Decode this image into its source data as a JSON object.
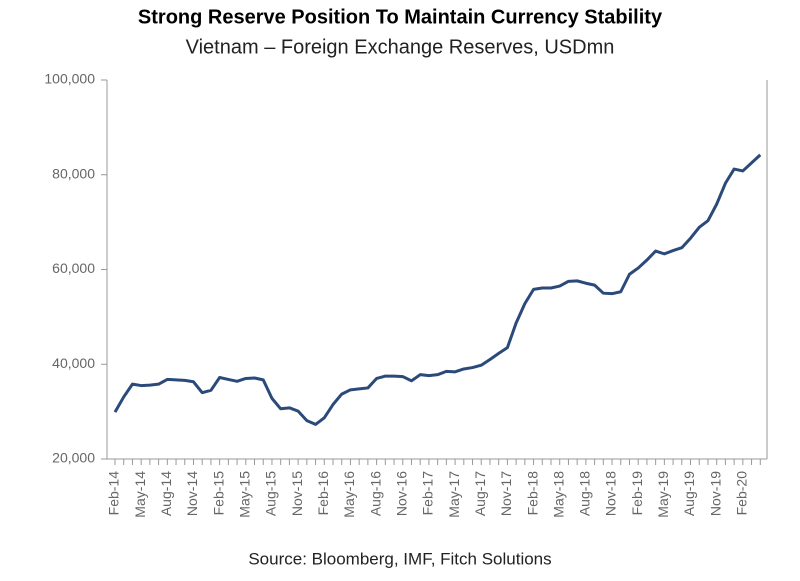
{
  "chart_data": {
    "type": "line",
    "title": "Strong Reserve Position To Maintain Currency Stability",
    "subtitle": "Vietnam – Foreign Exchange Reserves, USDmn",
    "source": "Source: Bloomberg, IMF, Fitch Solutions",
    "x": [
      "Feb-14",
      null,
      null,
      "May-14",
      null,
      null,
      "Aug-14",
      null,
      null,
      "Nov-14",
      null,
      null,
      "Feb-15",
      null,
      null,
      "May-15",
      null,
      null,
      "Aug-15",
      null,
      null,
      "Nov-15",
      null,
      null,
      "Feb-16",
      null,
      null,
      "May-16",
      null,
      null,
      "Aug-16",
      null,
      null,
      "Nov-16",
      null,
      null,
      "Feb-17",
      null,
      null,
      "May-17",
      null,
      null,
      "Aug-17",
      null,
      null,
      "Nov-17",
      null,
      null,
      "Feb-18",
      null,
      null,
      "May-18",
      null,
      null,
      "Aug-18",
      null,
      null,
      "Nov-18",
      null,
      null,
      "Feb-19",
      null,
      null,
      "May-19",
      null,
      null,
      "Aug-19",
      null,
      null,
      "Nov-19",
      null,
      null,
      "Feb-20",
      null,
      null
    ],
    "series": [
      {
        "name": "Foreign Exchange Reserves",
        "color": "#2b4a7a",
        "values": [
          29900,
          33100,
          35800,
          35500,
          35600,
          35800,
          36800,
          36700,
          36600,
          36300,
          34000,
          34500,
          37200,
          36800,
          36400,
          37000,
          37100,
          36700,
          32800,
          30600,
          30800,
          30100,
          28100,
          27300,
          28700,
          31500,
          33700,
          34600,
          34800,
          35000,
          37000,
          37500,
          37500,
          37400,
          36500,
          37800,
          37600,
          37800,
          38500,
          38400,
          39000,
          39300,
          39800,
          41000,
          42300,
          43500,
          48700,
          52800,
          55800,
          56100,
          56100,
          56500,
          57500,
          57600,
          57100,
          56700,
          55000,
          54900,
          55300,
          59000,
          60300,
          62000,
          63900,
          63300,
          64000,
          64600,
          66600,
          68900,
          70300,
          73800,
          78200,
          81200,
          80800,
          82500,
          84200
        ]
      }
    ],
    "ylim": [
      20000,
      100000
    ],
    "yticks": [
      {
        "value": 20000,
        "label": "20,000"
      },
      {
        "value": 40000,
        "label": "40,000"
      },
      {
        "value": 60000,
        "label": "60,000"
      },
      {
        "value": 80000,
        "label": "80,000"
      },
      {
        "value": 100000,
        "label": "100,000"
      }
    ],
    "grid": false
  }
}
